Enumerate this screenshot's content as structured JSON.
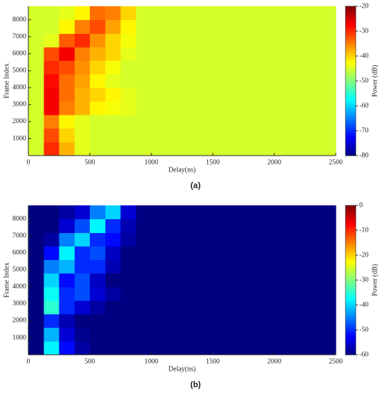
{
  "chart_data": [
    {
      "type": "heatmap",
      "caption": "(a)",
      "xlabel": "Delay(ns)",
      "ylabel": "Frame Index",
      "colorbar_label": "Power (dB)",
      "colormap": "jet",
      "xlim": [
        0,
        2500
      ],
      "xticks": [
        0,
        500,
        1000,
        1500,
        2000,
        2500
      ],
      "ylim": [
        0,
        8800
      ],
      "yticks": [
        1000,
        2000,
        3000,
        4000,
        5000,
        6000,
        7000,
        8000
      ],
      "clim": [
        -80,
        -20
      ],
      "cticks": [
        -80,
        -70,
        -60,
        -50,
        -40,
        -30,
        -20
      ],
      "xbins": [
        0,
        125,
        250,
        375,
        500,
        625,
        750,
        875,
        1000,
        1125,
        1250,
        1375,
        1500,
        1625,
        1750,
        1875,
        2000,
        2125,
        2250,
        2375,
        2500
      ],
      "ybins": [
        0,
        800,
        1600,
        2400,
        3200,
        4000,
        4800,
        5600,
        6400,
        7200,
        8000,
        8800
      ],
      "z": [
        [
          -45,
          -30,
          -38,
          -44,
          -45,
          -45,
          -45,
          -45,
          -45,
          -45,
          -45,
          -45,
          -45,
          -45,
          -45,
          -45,
          -45,
          -45,
          -45,
          -45
        ],
        [
          -45,
          -32,
          -40,
          -44,
          -45,
          -45,
          -45,
          -45,
          -45,
          -45,
          -45,
          -45,
          -45,
          -45,
          -45,
          -45,
          -45,
          -45,
          -45,
          -45
        ],
        [
          -45,
          -35,
          -42,
          -44,
          -45,
          -45,
          -45,
          -45,
          -45,
          -45,
          -45,
          -45,
          -45,
          -45,
          -45,
          -45,
          -45,
          -45,
          -45,
          -45
        ],
        [
          -45,
          -27,
          -35,
          -38,
          -42,
          -43,
          -44,
          -45,
          -45,
          -45,
          -45,
          -45,
          -45,
          -45,
          -45,
          -45,
          -45,
          -45,
          -45,
          -45
        ],
        [
          -45,
          -27,
          -34,
          -38,
          -40,
          -42,
          -44,
          -45,
          -45,
          -45,
          -45,
          -45,
          -45,
          -45,
          -45,
          -45,
          -45,
          -45,
          -45,
          -45
        ],
        [
          -45,
          -28,
          -34,
          -37,
          -42,
          -44,
          -45,
          -45,
          -45,
          -45,
          -45,
          -45,
          -45,
          -45,
          -45,
          -45,
          -45,
          -45,
          -45,
          -45
        ],
        [
          -45,
          -30,
          -32,
          -36,
          -40,
          -43,
          -45,
          -45,
          -45,
          -45,
          -45,
          -45,
          -45,
          -45,
          -45,
          -45,
          -45,
          -45,
          -45,
          -45
        ],
        [
          -45,
          -32,
          -27,
          -35,
          -38,
          -40,
          -44,
          -45,
          -45,
          -45,
          -45,
          -45,
          -45,
          -45,
          -45,
          -45,
          -45,
          -45,
          -45,
          -45
        ],
        [
          -45,
          -44,
          -33,
          -30,
          -36,
          -40,
          -43,
          -45,
          -45,
          -45,
          -45,
          -45,
          -45,
          -45,
          -45,
          -45,
          -45,
          -45,
          -45,
          -45
        ],
        [
          -45,
          -45,
          -42,
          -35,
          -32,
          -37,
          -42,
          -45,
          -45,
          -45,
          -45,
          -45,
          -45,
          -45,
          -45,
          -45,
          -45,
          -45,
          -45,
          -45
        ],
        [
          -45,
          -45,
          -44,
          -42,
          -34,
          -35,
          -40,
          -45,
          -45,
          -45,
          -45,
          -45,
          -45,
          -45,
          -45,
          -45,
          -45,
          -45,
          -45,
          -45
        ]
      ]
    },
    {
      "type": "heatmap",
      "caption": "(b)",
      "xlabel": "Delay(ns)",
      "ylabel": "Frame Index",
      "colorbar_label": "Power (dB)",
      "colormap": "jet",
      "xlim": [
        0,
        2500
      ],
      "xticks": [
        0,
        500,
        1000,
        1500,
        2000,
        2500
      ],
      "ylim": [
        0,
        8800
      ],
      "yticks": [
        1000,
        2000,
        3000,
        4000,
        5000,
        6000,
        7000,
        8000
      ],
      "clim": [
        -60,
        0
      ],
      "cticks": [
        -60,
        -50,
        -40,
        -30,
        -20,
        -10,
        0
      ],
      "xbins": [
        0,
        125,
        250,
        375,
        500,
        625,
        750,
        875,
        1000,
        1125,
        1250,
        1375,
        1500,
        1625,
        1750,
        1875,
        2000,
        2125,
        2250,
        2375,
        2500
      ],
      "ybins": [
        0,
        800,
        1600,
        2400,
        3200,
        4000,
        4800,
        5600,
        6400,
        7200,
        8000,
        8800
      ],
      "z": [
        [
          -60,
          -38,
          -52,
          -58,
          -60,
          -60,
          -60,
          -60,
          -60,
          -60,
          -60,
          -60,
          -60,
          -60,
          -60,
          -60,
          -60,
          -60,
          -60,
          -60
        ],
        [
          -60,
          -42,
          -55,
          -59,
          -60,
          -60,
          -60,
          -60,
          -60,
          -60,
          -60,
          -60,
          -60,
          -60,
          -60,
          -60,
          -60,
          -60,
          -60,
          -60
        ],
        [
          -60,
          -50,
          -57,
          -60,
          -60,
          -60,
          -60,
          -60,
          -60,
          -60,
          -60,
          -60,
          -60,
          -60,
          -60,
          -60,
          -60,
          -60,
          -60,
          -60
        ],
        [
          -60,
          -35,
          -50,
          -55,
          -58,
          -60,
          -60,
          -60,
          -60,
          -60,
          -60,
          -60,
          -60,
          -60,
          -60,
          -60,
          -60,
          -60,
          -60,
          -60
        ],
        [
          -60,
          -37,
          -50,
          -48,
          -55,
          -58,
          -60,
          -60,
          -60,
          -60,
          -60,
          -60,
          -60,
          -60,
          -60,
          -60,
          -60,
          -60,
          -60,
          -60
        ],
        [
          -60,
          -40,
          -52,
          -48,
          -56,
          -60,
          -60,
          -60,
          -60,
          -60,
          -60,
          -60,
          -60,
          -60,
          -60,
          -60,
          -60,
          -60,
          -60,
          -60
        ],
        [
          -60,
          -45,
          -42,
          -50,
          -50,
          -57,
          -60,
          -60,
          -60,
          -60,
          -60,
          -60,
          -60,
          -60,
          -60,
          -60,
          -60,
          -60,
          -60,
          -60
        ],
        [
          -60,
          -52,
          -38,
          -50,
          -48,
          -56,
          -60,
          -60,
          -60,
          -60,
          -60,
          -60,
          -60,
          -60,
          -60,
          -60,
          -60,
          -60,
          -60,
          -60
        ],
        [
          -60,
          -58,
          -45,
          -40,
          -50,
          -52,
          -58,
          -60,
          -60,
          -60,
          -60,
          -60,
          -60,
          -60,
          -60,
          -60,
          -60,
          -60,
          -60,
          -60
        ],
        [
          -60,
          -60,
          -55,
          -48,
          -38,
          -50,
          -57,
          -60,
          -60,
          -60,
          -60,
          -60,
          -60,
          -60,
          -60,
          -60,
          -60,
          -60,
          -60,
          -60
        ],
        [
          -60,
          -60,
          -58,
          -55,
          -45,
          -40,
          -55,
          -60,
          -60,
          -60,
          -60,
          -60,
          -60,
          -60,
          -60,
          -60,
          -60,
          -60,
          -60,
          -60
        ]
      ]
    }
  ]
}
